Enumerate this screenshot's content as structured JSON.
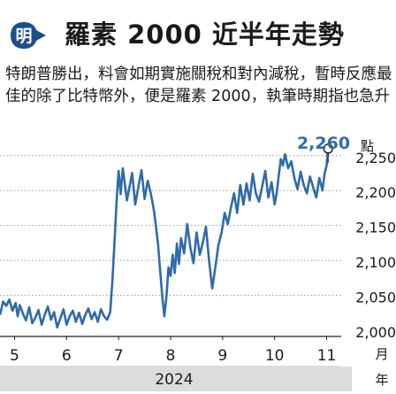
{
  "header": {
    "logo_text": "明",
    "title": "羅素 2000 近半年走勢"
  },
  "subtitle": "特朗普勝出，料會如期實施關稅和對內減稅，暫時反應最佳的除了比特幣外，便是羅素 2000，執筆時期指也急升",
  "colors": {
    "line": "#2f6bab",
    "logo": "#1f4f8a",
    "band": "#dcdcdc",
    "text": "#1a1a1a"
  },
  "chart_data": {
    "type": "line",
    "unit_label": "點",
    "month_unit": "月",
    "year_unit": "年",
    "year_label": "2024",
    "ylim": [
      2000,
      2270
    ],
    "yticks": [
      2000,
      2050,
      2100,
      2150,
      2200,
      2250
    ],
    "ytick_labels": [
      "2,000",
      "2,050",
      "2,100",
      "2,150",
      "2,200",
      "2,250"
    ],
    "xticks": [
      5,
      6,
      7,
      8,
      9,
      10,
      11
    ],
    "xtick_labels": [
      "5",
      "6",
      "7",
      "8",
      "9",
      "10",
      "11"
    ],
    "xlim": [
      4.72,
      11.28
    ],
    "last_value_label": "2,260",
    "series": [
      {
        "x": [
          4.72,
          4.78,
          4.84,
          4.9,
          4.96,
          5.02,
          5.06,
          5.1,
          5.16,
          5.22,
          5.28,
          5.34,
          5.4,
          5.46,
          5.52,
          5.58,
          5.64,
          5.7,
          5.76,
          5.82,
          5.88,
          5.94,
          6.0,
          6.06,
          6.12,
          6.18,
          6.24,
          6.3,
          6.36,
          6.42,
          6.48,
          6.54,
          6.6,
          6.66,
          6.72,
          6.78,
          6.84,
          6.88,
          6.92,
          6.96,
          7.0,
          7.04,
          7.08,
          7.12,
          7.16,
          7.2,
          7.26,
          7.32,
          7.38,
          7.44,
          7.5,
          7.56,
          7.62,
          7.68,
          7.72,
          7.76,
          7.8,
          7.84,
          7.88,
          7.92,
          7.96,
          8.0,
          8.04,
          8.08,
          8.12,
          8.16,
          8.2,
          8.26,
          8.32,
          8.38,
          8.44,
          8.5,
          8.56,
          8.62,
          8.68,
          8.74,
          8.8,
          8.86,
          8.92,
          8.98,
          9.04,
          9.1,
          9.16,
          9.22,
          9.28,
          9.34,
          9.4,
          9.46,
          9.52,
          9.58,
          9.64,
          9.7,
          9.76,
          9.82,
          9.88,
          9.94,
          10.0,
          10.04,
          10.08,
          10.12,
          10.16,
          10.2,
          10.26,
          10.32,
          10.38,
          10.44,
          10.5,
          10.56,
          10.62,
          10.68,
          10.74,
          10.8,
          10.86,
          10.92,
          10.96,
          11.0,
          11.03
        ],
        "values": [
          2022,
          2041,
          2035,
          2044,
          2028,
          2039,
          2020,
          2036,
          2024,
          2014,
          2033,
          2010,
          2018,
          2029,
          2008,
          2022,
          2034,
          2015,
          2026,
          2004,
          2017,
          2030,
          2008,
          2020,
          2028,
          2012,
          2025,
          2009,
          2022,
          2031,
          2016,
          2026,
          2012,
          2030,
          2020,
          2015,
          2026,
          2070,
          2125,
          2183,
          2228,
          2195,
          2232,
          2210,
          2186,
          2201,
          2225,
          2180,
          2205,
          2229,
          2188,
          2214,
          2196,
          2171,
          2148,
          2122,
          2085,
          2048,
          2020,
          2048,
          2090,
          2078,
          2108,
          2082,
          2124,
          2095,
          2132,
          2110,
          2152,
          2118,
          2096,
          2140,
          2108,
          2126,
          2148,
          2100,
          2060,
          2090,
          2122,
          2140,
          2168,
          2152,
          2176,
          2196,
          2168,
          2208,
          2180,
          2210,
          2186,
          2224,
          2196,
          2184,
          2206,
          2228,
          2190,
          2212,
          2180,
          2196,
          2222,
          2245,
          2236,
          2252,
          2232,
          2242,
          2218,
          2202,
          2227,
          2208,
          2196,
          2220,
          2205,
          2190,
          2218,
          2200,
          2224,
          2236,
          2260
        ]
      }
    ]
  }
}
